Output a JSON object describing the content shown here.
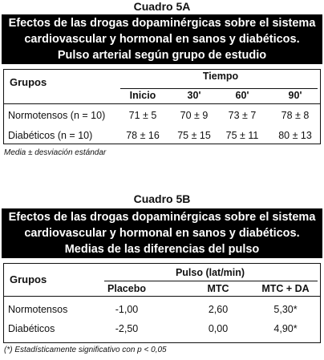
{
  "cuadro_5a": {
    "label": "Cuadro 5A",
    "title_lines": [
      "Efectos de las drogas dopaminérgicas sobre el sistema",
      "cardiovascular y hormonal en sanos y diabéticos.",
      "Pulso arterial según grupo de estudio"
    ],
    "row_header": "Grupos",
    "group_header": "Tiempo",
    "columns": [
      "Inicio",
      "30'",
      "60'",
      "90'"
    ],
    "rows": [
      [
        "Normotensos (n = 10)",
        "71 ± 5",
        "70 ± 9",
        "73 ± 7",
        "78 ± 8"
      ],
      [
        "Diabéticos (n = 10)",
        "78 ± 16",
        "75 ± 15",
        "75 ± 11",
        "80 ± 13"
      ]
    ],
    "footnote": "Media ± desviación estándar"
  },
  "cuadro_5b": {
    "label": "Cuadro 5B",
    "title_lines": [
      "Efectos de las drogas dopaminérgicas sobre el sistema",
      "cardiovascular y hormonal en sanos y diabéticos.",
      "Medias de las diferencias del pulso"
    ],
    "row_header": "Grupos",
    "group_header": "Pulso (lat/min)",
    "columns": [
      "Placebo",
      "MTC",
      "MTC + DA"
    ],
    "rows": [
      [
        "Normotensos",
        "-1,00",
        "2,60",
        "5,30*"
      ],
      [
        "Diabéticos",
        "-2,50",
        "0,00",
        "4,90*"
      ]
    ],
    "footnote": "(*) Estadísticamente significativo con p < 0,05"
  }
}
